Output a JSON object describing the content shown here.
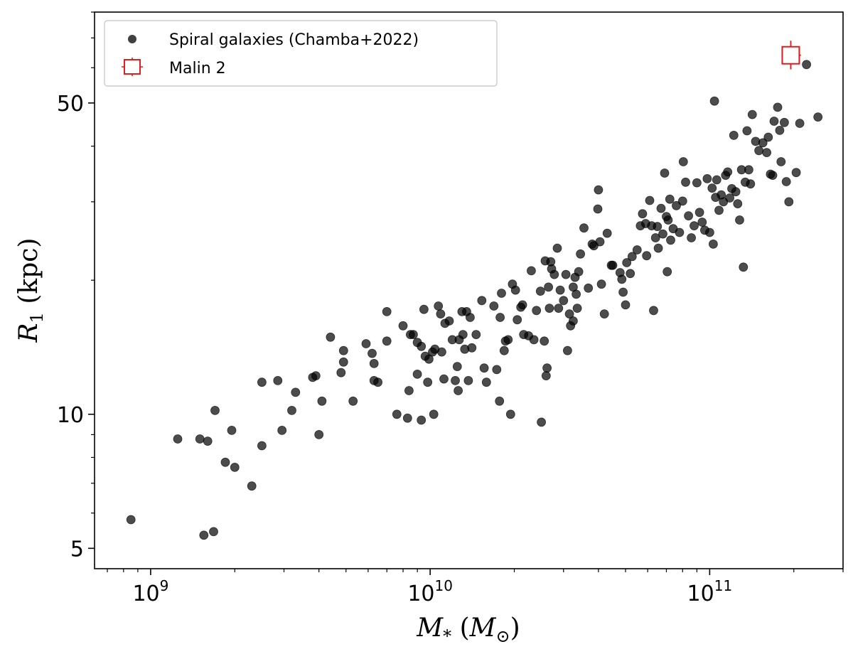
{
  "chart_data": {
    "type": "scatter",
    "xscale": "log",
    "yscale": "log",
    "xlim": [
      630000000.0,
      300000000000.0
    ],
    "ylim": [
      4.5,
      80
    ],
    "xlabel": "M_* (M_⊙)",
    "ylabel": "R_1 (kpc)",
    "x_ticks": [
      {
        "value": 1000000000.0,
        "mantissa": "10",
        "exponent": "9"
      },
      {
        "value": 10000000000.0,
        "mantissa": "10",
        "exponent": "10"
      },
      {
        "value": 100000000000.0,
        "mantissa": "10",
        "exponent": "11"
      }
    ],
    "y_ticks": [
      {
        "value": 5,
        "label": "5"
      },
      {
        "value": 10,
        "label": "10"
      },
      {
        "value": 50,
        "label": "50"
      }
    ],
    "grid": false,
    "legend": {
      "placement": "upper-left",
      "entries": [
        {
          "label": "Spiral galaxies (Chamba+2022)",
          "marker": "circle",
          "color": "#000000"
        },
        {
          "label": "Malin 2",
          "marker": "square",
          "color": "#e31a1c"
        }
      ]
    },
    "series": [
      {
        "name": "Spiral galaxies (Chamba+2022)",
        "color": "#000000",
        "opacity": 0.7,
        "points": [
          [
            850000000.0,
            5.8
          ],
          [
            1250000000.0,
            8.8
          ],
          [
            1500000000.0,
            8.8
          ],
          [
            1600000000.0,
            8.7
          ],
          [
            1550000000.0,
            5.35
          ],
          [
            1680000000.0,
            5.45
          ],
          [
            1700000000.0,
            10.2
          ],
          [
            1850000000.0,
            7.8
          ],
          [
            1950000000.0,
            9.2
          ],
          [
            2000000000.0,
            7.6
          ],
          [
            2300000000.0,
            6.9
          ],
          [
            2500000000.0,
            8.5
          ],
          [
            2500000000.0,
            11.8
          ],
          [
            2850000000.0,
            11.9
          ],
          [
            2950000000.0,
            9.2
          ],
          [
            3200000000.0,
            10.2
          ],
          [
            3300000000.0,
            11.2
          ],
          [
            3800000000.0,
            12.1
          ],
          [
            3900000000.0,
            12.2
          ],
          [
            4000000000.0,
            9.0
          ],
          [
            4100000000.0,
            10.7
          ],
          [
            4400000000.0,
            14.9
          ],
          [
            4800000000.0,
            12.4
          ],
          [
            4900000000.0,
            13.1
          ],
          [
            4900000000.0,
            13.9
          ],
          [
            5300000000.0,
            10.7
          ],
          [
            5900000000.0,
            14.4
          ],
          [
            6200000000.0,
            13.7
          ],
          [
            6300000000.0,
            13.0
          ],
          [
            6300000000.0,
            11.9
          ],
          [
            6500000000.0,
            11.8
          ],
          [
            7000000000.0,
            17.0
          ],
          [
            7000000000.0,
            14.6
          ],
          [
            7600000000.0,
            10.0
          ],
          [
            8000000000.0,
            15.8
          ],
          [
            8300000000.0,
            9.8
          ],
          [
            8400000000.0,
            11.3
          ],
          [
            8500000000.0,
            15.1
          ],
          [
            8700000000.0,
            15.1
          ],
          [
            9000000000.0,
            12.3
          ],
          [
            9000000000.0,
            14.5
          ],
          [
            9300000000.0,
            9.7
          ],
          [
            9300000000.0,
            14.2
          ],
          [
            9500000000.0,
            17.2
          ],
          [
            9600000000.0,
            13.5
          ],
          [
            9800000000.0,
            11.8
          ],
          [
            9900000000.0,
            13.3
          ],
          [
            10200000000.0,
            13.8
          ],
          [
            10300000000.0,
            10.0
          ],
          [
            10400000000.0,
            14.0
          ],
          [
            10700000000.0,
            17.5
          ],
          [
            10900000000.0,
            16.8
          ],
          [
            11000000000.0,
            13.8
          ],
          [
            11200000000.0,
            12.0
          ],
          [
            11300000000.0,
            16.0
          ],
          [
            11700000000.0,
            16.2
          ],
          [
            12000000000.0,
            14.7
          ],
          [
            12300000000.0,
            11.9
          ],
          [
            12500000000.0,
            12.8
          ],
          [
            12600000000.0,
            11.3
          ],
          [
            12700000000.0,
            14.7
          ],
          [
            13000000000.0,
            17.0
          ],
          [
            13100000000.0,
            15.1
          ],
          [
            13300000000.0,
            14.0
          ],
          [
            13500000000.0,
            17.0
          ],
          [
            13700000000.0,
            11.9
          ],
          [
            13900000000.0,
            16.5
          ],
          [
            14100000000.0,
            14.1
          ],
          [
            14600000000.0,
            15.1
          ],
          [
            15300000000.0,
            18.0
          ],
          [
            15600000000.0,
            12.7
          ],
          [
            15900000000.0,
            11.8
          ],
          [
            16900000000.0,
            17.5
          ],
          [
            17300000000.0,
            12.6
          ],
          [
            17700000000.0,
            10.7
          ],
          [
            17800000000.0,
            16.5
          ],
          [
            18000000000.0,
            18.7
          ],
          [
            18400000000.0,
            13.9
          ],
          [
            18600000000.0,
            14.6
          ],
          [
            19000000000.0,
            14.7
          ],
          [
            19400000000.0,
            10.0
          ],
          [
            19700000000.0,
            19.6
          ],
          [
            20200000000.0,
            19.0
          ],
          [
            20500000000.0,
            16.3
          ],
          [
            21100000000.0,
            17.4
          ],
          [
            21400000000.0,
            17.6
          ],
          [
            21600000000.0,
            15.1
          ],
          [
            22500000000.0,
            15.0
          ],
          [
            23000000000.0,
            21.0
          ],
          [
            23500000000.0,
            14.7
          ],
          [
            24000000000.0,
            17.1
          ],
          [
            24800000000.0,
            18.9
          ],
          [
            25000000000.0,
            9.6
          ],
          [
            25600000000.0,
            14.6
          ],
          [
            25800000000.0,
            22.1
          ],
          [
            26000000000.0,
            12.2
          ],
          [
            26200000000.0,
            12.7
          ],
          [
            26500000000.0,
            19.3
          ],
          [
            26700000000.0,
            17.3
          ],
          [
            27000000000.0,
            22.0
          ],
          [
            27200000000.0,
            21.2
          ],
          [
            27800000000.0,
            20.6
          ],
          [
            28500000000.0,
            23.6
          ],
          [
            28800000000.0,
            17.3
          ],
          [
            29200000000.0,
            19.0
          ],
          [
            30000000000.0,
            18.0
          ],
          [
            30600000000.0,
            20.6
          ],
          [
            31000000000.0,
            13.9
          ],
          [
            31500000000.0,
            16.8
          ],
          [
            31800000000.0,
            15.8
          ],
          [
            32500000000.0,
            19.3
          ],
          [
            32500000000.0,
            16.2
          ],
          [
            33000000000.0,
            20.3
          ],
          [
            33300000000.0,
            18.6
          ],
          [
            33600000000.0,
            17.3
          ],
          [
            34000000000.0,
            20.9
          ],
          [
            34500000000.0,
            22.9
          ],
          [
            35500000000.0,
            26.2
          ],
          [
            36800000000.0,
            19.2
          ],
          [
            38000000000.0,
            24.1
          ],
          [
            38500000000.0,
            23.9
          ],
          [
            39800000000.0,
            28.9
          ],
          [
            40000000000.0,
            31.9
          ],
          [
            40500000000.0,
            24.4
          ],
          [
            41000000000.0,
            19.6
          ],
          [
            42000000000.0,
            16.8
          ],
          [
            43000000000.0,
            25.5
          ],
          [
            44500000000.0,
            21.6
          ],
          [
            45000000000.0,
            21.6
          ],
          [
            47800000000.0,
            20.8
          ],
          [
            48500000000.0,
            20.1
          ],
          [
            49000000000.0,
            18.8
          ],
          [
            50000000000.0,
            17.6
          ],
          [
            50500000000.0,
            21.9
          ],
          [
            52000000000.0,
            20.7
          ],
          [
            52800000000.0,
            22.6
          ],
          [
            55000000000.0,
            23.4
          ],
          [
            56500000000.0,
            26.5
          ],
          [
            57500000000.0,
            28.2
          ],
          [
            59000000000.0,
            26.8
          ],
          [
            59500000000.0,
            22.7
          ],
          [
            61000000000.0,
            30.2
          ],
          [
            62000000000.0,
            26.5
          ],
          [
            63000000000.0,
            17.1
          ],
          [
            64000000000.0,
            24.9
          ],
          [
            65000000000.0,
            26.4
          ],
          [
            65500000000.0,
            23.6
          ],
          [
            67000000000.0,
            29.0
          ],
          [
            68000000000.0,
            25.4
          ],
          [
            69000000000.0,
            34.8
          ],
          [
            70000000000.0,
            27.8
          ],
          [
            70500000000.0,
            20.9
          ],
          [
            71000000000.0,
            27.3
          ],
          [
            72000000000.0,
            30.4
          ],
          [
            72500000000.0,
            24.6
          ],
          [
            74000000000.0,
            26.1
          ],
          [
            76000000000.0,
            29.4
          ],
          [
            78000000000.0,
            25.6
          ],
          [
            80000000000.0,
            30.1
          ],
          [
            80500000000.0,
            36.9
          ],
          [
            82000000000.0,
            33.2
          ],
          [
            84000000000.0,
            27.9
          ],
          [
            86000000000.0,
            24.9
          ],
          [
            88000000000.0,
            26.5
          ],
          [
            90000000000.0,
            33.1
          ],
          [
            92000000000.0,
            28.4
          ],
          [
            94000000000.0,
            27.0
          ],
          [
            96000000000.0,
            25.9
          ],
          [
            98000000000.0,
            33.8
          ],
          [
            100000000000.0,
            25.6
          ],
          [
            102000000000.0,
            32.2
          ],
          [
            103000000000.0,
            24.1
          ],
          [
            104000000000.0,
            50.5
          ],
          [
            105000000000.0,
            30.7
          ],
          [
            106000000000.0,
            33.6
          ],
          [
            108000000000.0,
            28.7
          ],
          [
            110000000000.0,
            31.1
          ],
          [
            112000000000.0,
            30.0
          ],
          [
            114000000000.0,
            34.4
          ],
          [
            116000000000.0,
            35.0
          ],
          [
            118000000000.0,
            30.6
          ],
          [
            120000000000.0,
            32.1
          ],
          [
            122000000000.0,
            42.3
          ],
          [
            124000000000.0,
            31.6
          ],
          [
            126000000000.0,
            29.7
          ],
          [
            128000000000.0,
            27.3
          ],
          [
            130000000000.0,
            35.4
          ],
          [
            132000000000.0,
            21.4
          ],
          [
            134000000000.0,
            33.2
          ],
          [
            136000000000.0,
            43.3
          ],
          [
            138000000000.0,
            35.4
          ],
          [
            140000000000.0,
            32.9
          ],
          [
            142000000000.0,
            47.1
          ],
          [
            146000000000.0,
            41.0
          ],
          [
            150000000000.0,
            39.1
          ],
          [
            155000000000.0,
            40.7
          ],
          [
            160000000000.0,
            38.7
          ],
          [
            162000000000.0,
            41.9
          ],
          [
            165000000000.0,
            34.6
          ],
          [
            168000000000.0,
            34.4
          ],
          [
            170000000000.0,
            45.5
          ],
          [
            175000000000.0,
            48.9
          ],
          [
            178000000000.0,
            43.4
          ],
          [
            180000000000.0,
            36.9
          ],
          [
            185000000000.0,
            45.2
          ],
          [
            188000000000.0,
            33.3
          ],
          [
            192000000000.0,
            30.0
          ],
          [
            196000000000.0,
            65.0
          ],
          [
            204000000000.0,
            34.9
          ],
          [
            210000000000.0,
            45.0
          ],
          [
            222000000000.0,
            61.0
          ],
          [
            244000000000.0,
            46.5
          ]
        ]
      },
      {
        "name": "Malin 2",
        "color": "#e31a1c",
        "marker": "square",
        "points": [
          {
            "x": 195000000000.0,
            "y": 64.0,
            "xerr": [
              182000000000.0,
              212000000000.0
            ],
            "yerr": [
              59.5,
              69.0
            ]
          }
        ]
      }
    ]
  }
}
